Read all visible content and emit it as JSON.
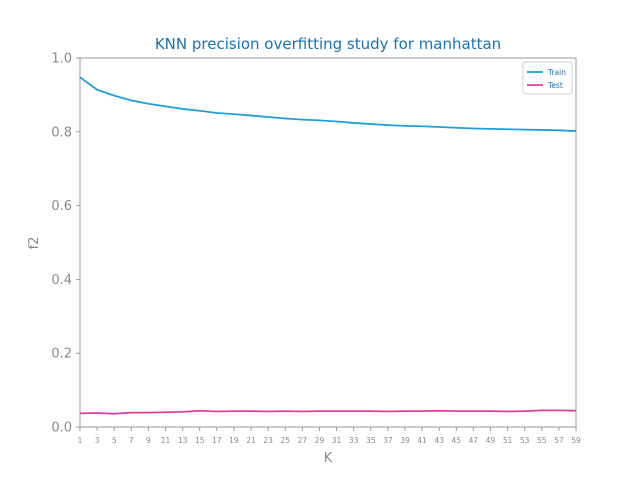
{
  "chart_data": {
    "type": "line",
    "title": "KNN precision overfitting study for manhattan",
    "xlabel": "K",
    "ylabel": "f2",
    "x": [
      1,
      3,
      5,
      7,
      9,
      11,
      13,
      15,
      17,
      19,
      21,
      23,
      25,
      27,
      29,
      31,
      33,
      35,
      37,
      39,
      41,
      43,
      45,
      47,
      49,
      51,
      53,
      55,
      57,
      59
    ],
    "xlim": [
      1,
      59
    ],
    "ylim": [
      0.0,
      1.0
    ],
    "yticks": [
      "0.0",
      "0.2",
      "0.4",
      "0.6",
      "0.8",
      "1.0"
    ],
    "grid": false,
    "legend_position": "top-right",
    "series": [
      {
        "name": "Train",
        "color": "#1f9fd8",
        "values": [
          0.948,
          0.914,
          0.898,
          0.885,
          0.876,
          0.869,
          0.862,
          0.857,
          0.851,
          0.848,
          0.844,
          0.84,
          0.836,
          0.833,
          0.831,
          0.828,
          0.824,
          0.821,
          0.818,
          0.816,
          0.815,
          0.813,
          0.811,
          0.809,
          0.808,
          0.807,
          0.806,
          0.805,
          0.804,
          0.802
        ]
      },
      {
        "name": "Test",
        "color": "#e43f9a",
        "values": [
          0.037,
          0.038,
          0.036,
          0.039,
          0.039,
          0.04,
          0.041,
          0.044,
          0.042,
          0.043,
          0.043,
          0.042,
          0.043,
          0.042,
          0.043,
          0.043,
          0.043,
          0.043,
          0.042,
          0.043,
          0.043,
          0.044,
          0.043,
          0.043,
          0.043,
          0.042,
          0.043,
          0.045,
          0.045,
          0.044
        ]
      }
    ]
  },
  "style": {
    "title_color": "#1a73b0",
    "axis_color": "#9a9a9a",
    "legend_text_color": "#1a73b0"
  }
}
